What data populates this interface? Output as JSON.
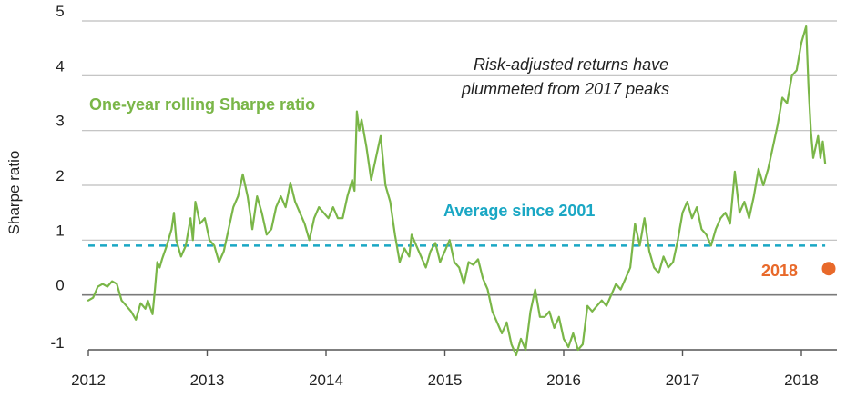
{
  "colors": {
    "series": "#7ab648",
    "average": "#1aa7c4",
    "point": "#e8692a",
    "grid": "#bdbdbd",
    "zero": "#7a7a7a",
    "axis": "#555555"
  },
  "chart_data": {
    "type": "line",
    "title": "",
    "xlabel": "",
    "ylabel": "Sharpe ratio",
    "xlim": [
      2012.0,
      2018.3
    ],
    "ylim": [
      -1,
      5
    ],
    "x_ticks": [
      "2012",
      "2013",
      "2014",
      "2015",
      "2016",
      "2017",
      "2018"
    ],
    "y_ticks": [
      "5",
      "4",
      "3",
      "2",
      "1",
      "0",
      "-1"
    ],
    "grid": "horizontal",
    "series": [
      {
        "name": "One-year rolling Sharpe ratio",
        "points": [
          [
            2012.0,
            -0.1
          ],
          [
            2012.04,
            -0.05
          ],
          [
            2012.08,
            0.15
          ],
          [
            2012.12,
            0.2
          ],
          [
            2012.16,
            0.15
          ],
          [
            2012.2,
            0.25
          ],
          [
            2012.24,
            0.2
          ],
          [
            2012.28,
            -0.1
          ],
          [
            2012.32,
            -0.2
          ],
          [
            2012.36,
            -0.3
          ],
          [
            2012.4,
            -0.45
          ],
          [
            2012.44,
            -0.15
          ],
          [
            2012.48,
            -0.25
          ],
          [
            2012.5,
            -0.1
          ],
          [
            2012.54,
            -0.35
          ],
          [
            2012.56,
            0.1
          ],
          [
            2012.58,
            0.6
          ],
          [
            2012.6,
            0.5
          ],
          [
            2012.62,
            0.65
          ],
          [
            2012.66,
            0.9
          ],
          [
            2012.7,
            1.2
          ],
          [
            2012.72,
            1.5
          ],
          [
            2012.74,
            1.0
          ],
          [
            2012.78,
            0.7
          ],
          [
            2012.82,
            0.9
          ],
          [
            2012.86,
            1.4
          ],
          [
            2012.88,
            1.0
          ],
          [
            2012.9,
            1.7
          ],
          [
            2012.94,
            1.3
          ],
          [
            2012.98,
            1.4
          ],
          [
            2013.02,
            1.0
          ],
          [
            2013.06,
            0.9
          ],
          [
            2013.1,
            0.6
          ],
          [
            2013.14,
            0.8
          ],
          [
            2013.18,
            1.2
          ],
          [
            2013.22,
            1.6
          ],
          [
            2013.26,
            1.8
          ],
          [
            2013.3,
            2.2
          ],
          [
            2013.34,
            1.8
          ],
          [
            2013.38,
            1.2
          ],
          [
            2013.42,
            1.8
          ],
          [
            2013.46,
            1.5
          ],
          [
            2013.5,
            1.1
          ],
          [
            2013.54,
            1.2
          ],
          [
            2013.58,
            1.6
          ],
          [
            2013.62,
            1.8
          ],
          [
            2013.66,
            1.6
          ],
          [
            2013.7,
            2.05
          ],
          [
            2013.74,
            1.7
          ],
          [
            2013.78,
            1.5
          ],
          [
            2013.82,
            1.3
          ],
          [
            2013.86,
            1.0
          ],
          [
            2013.9,
            1.4
          ],
          [
            2013.94,
            1.6
          ],
          [
            2013.98,
            1.5
          ],
          [
            2014.02,
            1.4
          ],
          [
            2014.06,
            1.6
          ],
          [
            2014.1,
            1.4
          ],
          [
            2014.14,
            1.4
          ],
          [
            2014.18,
            1.8
          ],
          [
            2014.22,
            2.1
          ],
          [
            2014.24,
            1.9
          ],
          [
            2014.26,
            3.35
          ],
          [
            2014.28,
            3.0
          ],
          [
            2014.3,
            3.2
          ],
          [
            2014.34,
            2.7
          ],
          [
            2014.38,
            2.1
          ],
          [
            2014.42,
            2.5
          ],
          [
            2014.46,
            2.9
          ],
          [
            2014.5,
            2.0
          ],
          [
            2014.54,
            1.7
          ],
          [
            2014.58,
            1.1
          ],
          [
            2014.62,
            0.6
          ],
          [
            2014.66,
            0.85
          ],
          [
            2014.7,
            0.7
          ],
          [
            2014.72,
            1.1
          ],
          [
            2014.76,
            0.9
          ],
          [
            2014.8,
            0.7
          ],
          [
            2014.84,
            0.5
          ],
          [
            2014.88,
            0.8
          ],
          [
            2014.92,
            0.95
          ],
          [
            2014.96,
            0.6
          ],
          [
            2015.0,
            0.8
          ],
          [
            2015.04,
            1.0
          ],
          [
            2015.08,
            0.6
          ],
          [
            2015.12,
            0.5
          ],
          [
            2015.16,
            0.2
          ],
          [
            2015.2,
            0.6
          ],
          [
            2015.24,
            0.55
          ],
          [
            2015.28,
            0.65
          ],
          [
            2015.32,
            0.3
          ],
          [
            2015.36,
            0.1
          ],
          [
            2015.4,
            -0.3
          ],
          [
            2015.44,
            -0.5
          ],
          [
            2015.48,
            -0.7
          ],
          [
            2015.52,
            -0.5
          ],
          [
            2015.56,
            -0.9
          ],
          [
            2015.6,
            -1.1
          ],
          [
            2015.64,
            -0.8
          ],
          [
            2015.68,
            -1.0
          ],
          [
            2015.72,
            -0.3
          ],
          [
            2015.76,
            0.1
          ],
          [
            2015.8,
            -0.4
          ],
          [
            2015.84,
            -0.4
          ],
          [
            2015.88,
            -0.3
          ],
          [
            2015.92,
            -0.6
          ],
          [
            2015.96,
            -0.4
          ],
          [
            2016.0,
            -0.8
          ],
          [
            2016.04,
            -0.95
          ],
          [
            2016.08,
            -0.7
          ],
          [
            2016.12,
            -1.0
          ],
          [
            2016.16,
            -0.9
          ],
          [
            2016.2,
            -0.2
          ],
          [
            2016.24,
            -0.3
          ],
          [
            2016.28,
            -0.2
          ],
          [
            2016.32,
            -0.1
          ],
          [
            2016.36,
            -0.2
          ],
          [
            2016.4,
            0.0
          ],
          [
            2016.44,
            0.2
          ],
          [
            2016.48,
            0.1
          ],
          [
            2016.52,
            0.3
          ],
          [
            2016.56,
            0.5
          ],
          [
            2016.6,
            1.3
          ],
          [
            2016.64,
            0.9
          ],
          [
            2016.68,
            1.4
          ],
          [
            2016.72,
            0.8
          ],
          [
            2016.76,
            0.5
          ],
          [
            2016.8,
            0.4
          ],
          [
            2016.84,
            0.7
          ],
          [
            2016.88,
            0.5
          ],
          [
            2016.92,
            0.6
          ],
          [
            2016.96,
            1.0
          ],
          [
            2017.0,
            1.5
          ],
          [
            2017.04,
            1.7
          ],
          [
            2017.08,
            1.4
          ],
          [
            2017.12,
            1.6
          ],
          [
            2017.16,
            1.2
          ],
          [
            2017.2,
            1.1
          ],
          [
            2017.24,
            0.9
          ],
          [
            2017.28,
            1.2
          ],
          [
            2017.32,
            1.4
          ],
          [
            2017.36,
            1.5
          ],
          [
            2017.4,
            1.3
          ],
          [
            2017.44,
            2.25
          ],
          [
            2017.48,
            1.5
          ],
          [
            2017.52,
            1.7
          ],
          [
            2017.56,
            1.4
          ],
          [
            2017.6,
            1.8
          ],
          [
            2017.64,
            2.3
          ],
          [
            2017.68,
            2.0
          ],
          [
            2017.72,
            2.3
          ],
          [
            2017.76,
            2.7
          ],
          [
            2017.8,
            3.1
          ],
          [
            2017.84,
            3.6
          ],
          [
            2017.88,
            3.5
          ],
          [
            2017.92,
            4.0
          ],
          [
            2017.96,
            4.1
          ],
          [
            2018.0,
            4.6
          ],
          [
            2018.04,
            4.9
          ],
          [
            2018.06,
            3.8
          ],
          [
            2018.08,
            3.0
          ],
          [
            2018.1,
            2.5
          ],
          [
            2018.14,
            2.9
          ],
          [
            2018.16,
            2.5
          ],
          [
            2018.18,
            2.8
          ],
          [
            2018.2,
            2.4
          ]
        ]
      },
      {
        "name": "Average since 2001",
        "style": "dashed",
        "value": 0.9,
        "x_range": [
          2012.0,
          2018.2
        ]
      }
    ],
    "highlight": {
      "label": "2018",
      "x": 2018.23,
      "y": 0.48
    },
    "annotations": [
      "Risk-adjusted returns have",
      "plummeted from 2017 peaks"
    ]
  }
}
